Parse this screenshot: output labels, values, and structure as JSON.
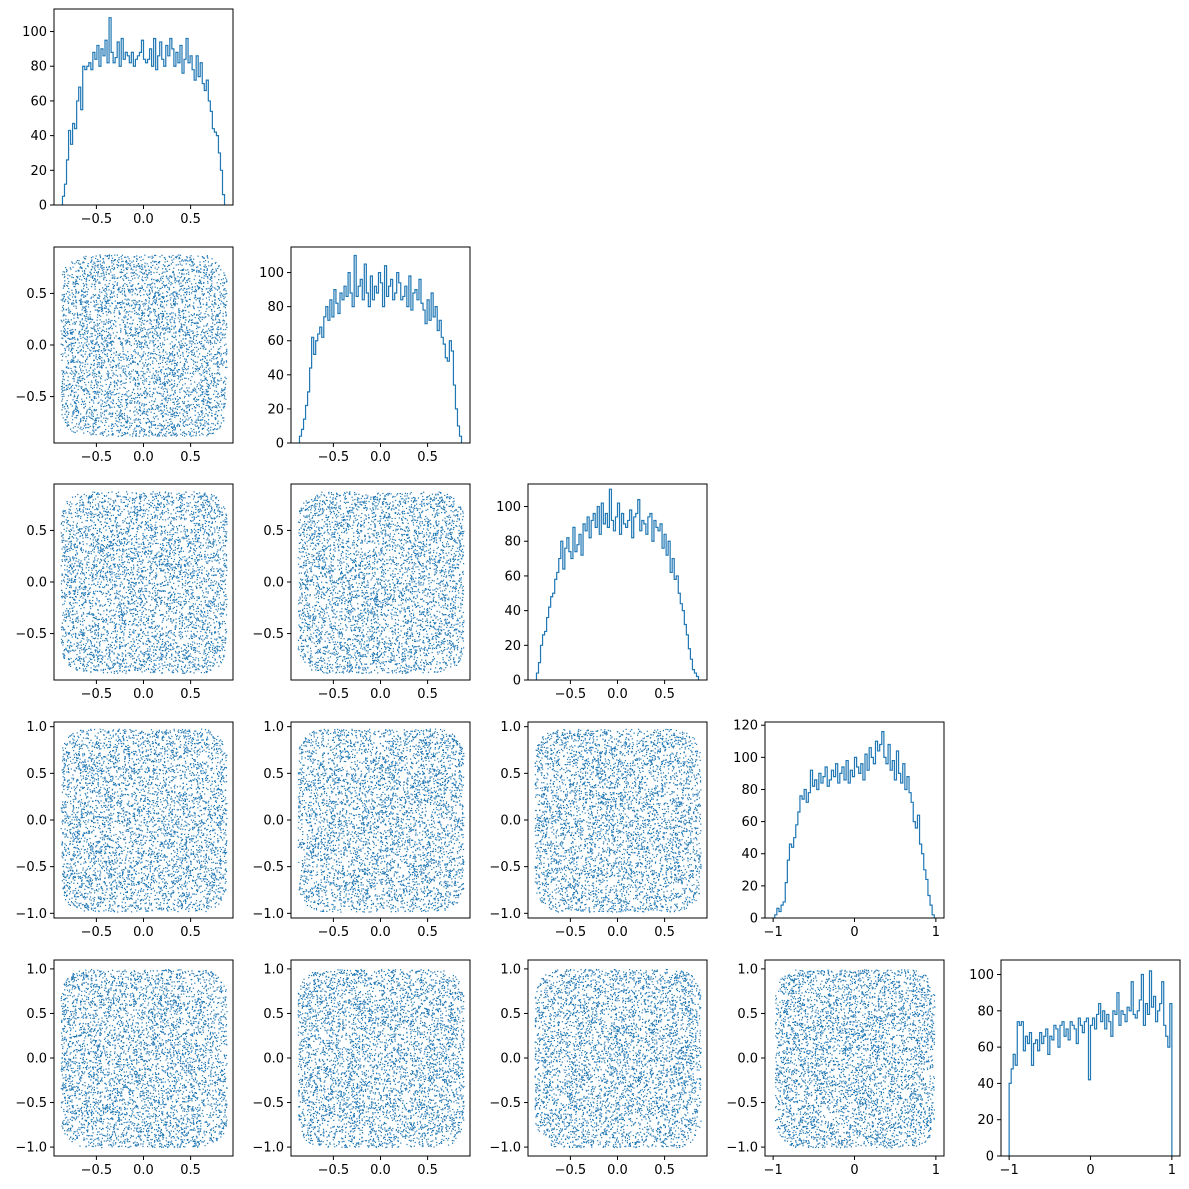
{
  "chart_data": {
    "type": "corner-plot",
    "grid_rows": 5,
    "grid_cols": 5,
    "series_color": "#1f77b4",
    "histograms": [
      {
        "variable_index": 0,
        "type": "histogram-step",
        "xlim": [
          -0.95,
          0.95
        ],
        "ylim": [
          0,
          113
        ],
        "xticks": [
          -0.5,
          0.0,
          0.5
        ],
        "xtick_labels": [
          "−0.5",
          "0.0",
          "0.5"
        ],
        "yticks": [
          0,
          20,
          40,
          60,
          80,
          100
        ],
        "ytick_labels": [
          "0",
          "20",
          "40",
          "60",
          "80",
          "100"
        ],
        "bin_start": -0.86,
        "bin_end": 0.86,
        "counts": [
          5,
          12,
          26,
          43,
          35,
          47,
          44,
          60,
          68,
          55,
          80,
          78,
          80,
          82,
          78,
          88,
          84,
          92,
          80,
          90,
          86,
          95,
          82,
          108,
          88,
          82,
          85,
          94,
          80,
          96,
          84,
          88,
          86,
          82,
          88,
          80,
          84,
          86,
          88,
          95,
          84,
          82,
          84,
          90,
          80,
          96,
          78,
          86,
          94,
          84,
          80,
          92,
          86,
          96,
          90,
          80,
          88,
          82,
          92,
          76,
          84,
          96,
          82,
          86,
          78,
          72,
          86,
          74,
          82,
          70,
          66,
          72,
          60,
          54,
          44,
          42,
          40,
          30,
          20,
          6
        ]
      },
      {
        "variable_index": 1,
        "type": "histogram-step",
        "xlim": [
          -0.95,
          0.95
        ],
        "ylim": [
          0,
          115
        ],
        "xticks": [
          -0.5,
          0.0,
          0.5
        ],
        "xtick_labels": [
          "−0.5",
          "0.0",
          "0.5"
        ],
        "yticks": [
          0,
          20,
          40,
          60,
          80,
          100
        ],
        "ytick_labels": [
          "0",
          "20",
          "40",
          "60",
          "80",
          "100"
        ],
        "bin_start": -0.86,
        "bin_end": 0.86,
        "counts": [
          4,
          8,
          14,
          22,
          30,
          44,
          62,
          52,
          60,
          64,
          68,
          62,
          74,
          80,
          72,
          84,
          74,
          90,
          82,
          76,
          88,
          84,
          92,
          86,
          100,
          88,
          80,
          110,
          86,
          92,
          96,
          84,
          105,
          88,
          80,
          98,
          84,
          92,
          88,
          100,
          94,
          80,
          104,
          86,
          92,
          96,
          84,
          88,
          100,
          94,
          84,
          86,
          92,
          80,
          98,
          78,
          88,
          90,
          84,
          96,
          82,
          78,
          70,
          84,
          72,
          88,
          74,
          80,
          66,
          72,
          62,
          58,
          50,
          48,
          60,
          54,
          34,
          20,
          10,
          4
        ]
      },
      {
        "variable_index": 2,
        "type": "histogram-step",
        "xlim": [
          -0.95,
          0.95
        ],
        "ylim": [
          0,
          113
        ],
        "xticks": [
          -0.5,
          0.0,
          0.5
        ],
        "xtick_labels": [
          "−0.5",
          "0.0",
          "0.5"
        ],
        "yticks": [
          0,
          20,
          40,
          60,
          80,
          100
        ],
        "ytick_labels": [
          "0",
          "20",
          "40",
          "60",
          "80",
          "100"
        ],
        "bin_start": -0.86,
        "bin_end": 0.86,
        "counts": [
          4,
          10,
          20,
          26,
          28,
          36,
          42,
          48,
          50,
          58,
          62,
          70,
          80,
          64,
          76,
          82,
          74,
          70,
          88,
          74,
          78,
          84,
          72,
          90,
          86,
          94,
          82,
          92,
          96,
          88,
          100,
          84,
          102,
          90,
          96,
          88,
          110,
          92,
          86,
          94,
          102,
          84,
          96,
          90,
          88,
          92,
          98,
          82,
          94,
          96,
          104,
          86,
          92,
          90,
          84,
          94,
          96,
          80,
          92,
          88,
          86,
          90,
          76,
          84,
          72,
          80,
          62,
          70,
          58,
          60,
          50,
          44,
          40,
          32,
          26,
          18,
          12,
          6,
          4,
          2
        ]
      },
      {
        "variable_index": 3,
        "type": "histogram-step",
        "xlim": [
          -1.1,
          1.1
        ],
        "ylim": [
          0,
          122
        ],
        "xticks": [
          -1,
          0,
          1
        ],
        "xtick_labels": [
          "−1",
          "0",
          "1"
        ],
        "yticks": [
          0,
          20,
          40,
          60,
          80,
          100,
          120
        ],
        "ytick_labels": [
          "0",
          "20",
          "40",
          "60",
          "80",
          "100",
          "120"
        ],
        "bin_start": -0.98,
        "bin_end": 0.98,
        "counts": [
          2,
          6,
          4,
          8,
          10,
          22,
          36,
          46,
          44,
          50,
          58,
          66,
          76,
          74,
          80,
          72,
          78,
          92,
          82,
          86,
          80,
          90,
          84,
          88,
          94,
          82,
          86,
          92,
          88,
          96,
          84,
          90,
          94,
          86,
          98,
          84,
          92,
          88,
          100,
          94,
          90,
          96,
          86,
          102,
          92,
          106,
          100,
          96,
          110,
          104,
          108,
          116,
          100,
          96,
          108,
          92,
          98,
          86,
          104,
          90,
          84,
          96,
          80,
          88,
          78,
          72,
          60,
          56,
          64,
          46,
          40,
          30,
          24,
          14,
          8,
          2
        ]
      },
      {
        "variable_index": 4,
        "type": "histogram-step",
        "xlim": [
          -1.1,
          1.1
        ],
        "ylim": [
          0,
          108
        ],
        "xticks": [
          -1,
          0,
          1
        ],
        "xtick_labels": [
          "−1",
          "0",
          "1"
        ],
        "yticks": [
          0,
          20,
          40,
          60,
          80,
          100
        ],
        "ytick_labels": [
          "0",
          "20",
          "40",
          "60",
          "80",
          "100"
        ],
        "bin_start": -1.0,
        "bin_end": 1.0,
        "counts": [
          40,
          48,
          56,
          50,
          74,
          72,
          74,
          58,
          66,
          62,
          68,
          50,
          62,
          64,
          58,
          68,
          62,
          66,
          70,
          56,
          66,
          64,
          72,
          70,
          60,
          72,
          74,
          66,
          70,
          64,
          74,
          72,
          70,
          62,
          76,
          72,
          68,
          74,
          76,
          42,
          72,
          76,
          70,
          78,
          84,
          74,
          80,
          70,
          78,
          74,
          66,
          80,
          78,
          90,
          72,
          80,
          78,
          74,
          82,
          80,
          96,
          78,
          76,
          80,
          86,
          100,
          72,
          84,
          78,
          102,
          82,
          88,
          74,
          80,
          84,
          96,
          72,
          66,
          60,
          84
        ]
      }
    ],
    "scatter_panels": [
      {
        "row": 1,
        "col": 0,
        "x_variable": 0,
        "y_variable": 1,
        "xlim": [
          -0.95,
          0.95
        ],
        "ylim": [
          -0.95,
          0.95
        ],
        "xticks": [
          -0.5,
          0.0,
          0.5
        ],
        "xtick_labels": [
          "−0.5",
          "0.0",
          "0.5"
        ],
        "yticks": [
          -0.5,
          0.0,
          0.5
        ],
        "ytick_labels": [
          "−0.5",
          "0.0",
          "0.5"
        ]
      },
      {
        "row": 2,
        "col": 0,
        "x_variable": 0,
        "y_variable": 2,
        "xlim": [
          -0.95,
          0.95
        ],
        "ylim": [
          -0.95,
          0.95
        ],
        "xticks": [
          -0.5,
          0.0,
          0.5
        ],
        "xtick_labels": [
          "−0.5",
          "0.0",
          "0.5"
        ],
        "yticks": [
          -0.5,
          0.0,
          0.5
        ],
        "ytick_labels": [
          "−0.5",
          "0.0",
          "0.5"
        ]
      },
      {
        "row": 2,
        "col": 1,
        "x_variable": 1,
        "y_variable": 2,
        "xlim": [
          -0.95,
          0.95
        ],
        "ylim": [
          -0.95,
          0.95
        ],
        "xticks": [
          -0.5,
          0.0,
          0.5
        ],
        "xtick_labels": [
          "−0.5",
          "0.0",
          "0.5"
        ],
        "yticks": [
          -0.5,
          0.0,
          0.5
        ],
        "ytick_labels": [
          "−0.5",
          "0.0",
          "0.5"
        ]
      },
      {
        "row": 3,
        "col": 0,
        "x_variable": 0,
        "y_variable": 3,
        "xlim": [
          -0.95,
          0.95
        ],
        "ylim": [
          -1.05,
          1.05
        ],
        "xticks": [
          -0.5,
          0.0,
          0.5
        ],
        "xtick_labels": [
          "−0.5",
          "0.0",
          "0.5"
        ],
        "yticks": [
          -1.0,
          -0.5,
          0.0,
          0.5,
          1.0
        ],
        "ytick_labels": [
          "−1.0",
          "−0.5",
          "0.0",
          "0.5",
          "1.0"
        ]
      },
      {
        "row": 3,
        "col": 1,
        "x_variable": 1,
        "y_variable": 3,
        "xlim": [
          -0.95,
          0.95
        ],
        "ylim": [
          -1.05,
          1.05
        ],
        "xticks": [
          -0.5,
          0.0,
          0.5
        ],
        "xtick_labels": [
          "−0.5",
          "0.0",
          "0.5"
        ],
        "yticks": [
          -1.0,
          -0.5,
          0.0,
          0.5,
          1.0
        ],
        "ytick_labels": [
          "−1.0",
          "−0.5",
          "0.0",
          "0.5",
          "1.0"
        ]
      },
      {
        "row": 3,
        "col": 2,
        "x_variable": 2,
        "y_variable": 3,
        "xlim": [
          -0.95,
          0.95
        ],
        "ylim": [
          -1.05,
          1.05
        ],
        "xticks": [
          -0.5,
          0.0,
          0.5
        ],
        "xtick_labels": [
          "−0.5",
          "0.0",
          "0.5"
        ],
        "yticks": [
          -1.0,
          -0.5,
          0.0,
          0.5,
          1.0
        ],
        "ytick_labels": [
          "−1.0",
          "−0.5",
          "0.0",
          "0.5",
          "1.0"
        ]
      },
      {
        "row": 4,
        "col": 0,
        "x_variable": 0,
        "y_variable": 4,
        "xlim": [
          -0.95,
          0.95
        ],
        "ylim": [
          -1.1,
          1.1
        ],
        "xticks": [
          -0.5,
          0.0,
          0.5
        ],
        "xtick_labels": [
          "−0.5",
          "0.0",
          "0.5"
        ],
        "yticks": [
          -1.0,
          -0.5,
          0.0,
          0.5,
          1.0
        ],
        "ytick_labels": [
          "−1.0",
          "−0.5",
          "0.0",
          "0.5",
          "1.0"
        ]
      },
      {
        "row": 4,
        "col": 1,
        "x_variable": 1,
        "y_variable": 4,
        "xlim": [
          -0.95,
          0.95
        ],
        "ylim": [
          -1.1,
          1.1
        ],
        "xticks": [
          -0.5,
          0.0,
          0.5
        ],
        "xtick_labels": [
          "−0.5",
          "0.0",
          "0.5"
        ],
        "yticks": [
          -1.0,
          -0.5,
          0.0,
          0.5,
          1.0
        ],
        "ytick_labels": [
          "−1.0",
          "−0.5",
          "0.0",
          "0.5",
          "1.0"
        ]
      },
      {
        "row": 4,
        "col": 2,
        "x_variable": 2,
        "y_variable": 4,
        "xlim": [
          -0.95,
          0.95
        ],
        "ylim": [
          -1.1,
          1.1
        ],
        "xticks": [
          -0.5,
          0.0,
          0.5
        ],
        "xtick_labels": [
          "−0.5",
          "0.0",
          "0.5"
        ],
        "yticks": [
          -1.0,
          -0.5,
          0.0,
          0.5,
          1.0
        ],
        "ytick_labels": [
          "−1.0",
          "−0.5",
          "0.0",
          "0.5",
          "1.0"
        ]
      },
      {
        "row": 4,
        "col": 3,
        "x_variable": 3,
        "y_variable": 4,
        "xlim": [
          -1.1,
          1.1
        ],
        "ylim": [
          -1.1,
          1.1
        ],
        "xticks": [
          -1,
          0,
          1
        ],
        "xtick_labels": [
          "−1",
          "0",
          "1"
        ],
        "yticks": [
          -1.0,
          -0.5,
          0.0,
          0.5,
          1.0
        ],
        "ytick_labels": [
          "−1.0",
          "−0.5",
          "0.0",
          "0.5",
          "1.0"
        ]
      }
    ],
    "variable_ranges": [
      [
        -0.88,
        0.88
      ],
      [
        -0.88,
        0.88
      ],
      [
        -0.88,
        0.88
      ],
      [
        -0.98,
        0.98
      ],
      [
        -1.0,
        1.0
      ]
    ]
  }
}
